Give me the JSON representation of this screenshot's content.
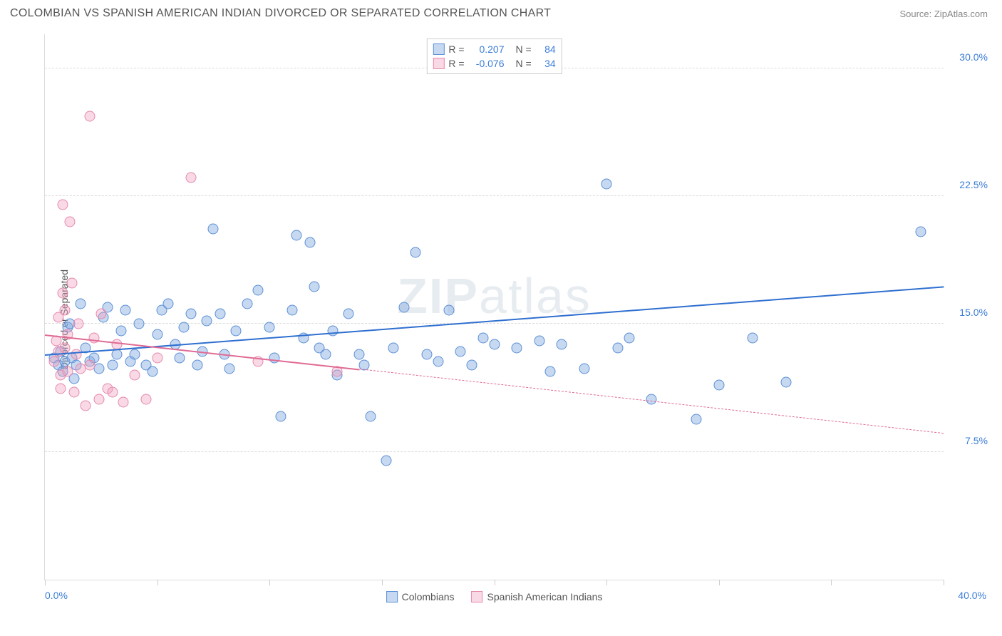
{
  "title": "COLOMBIAN VS SPANISH AMERICAN INDIAN DIVORCED OR SEPARATED CORRELATION CHART",
  "source_label": "Source: ",
  "source_name": "ZipAtlas.com",
  "ylabel": "Divorced or Separated",
  "watermark_bold": "ZIP",
  "watermark_light": "atlas",
  "chart": {
    "type": "scatter",
    "background_color": "#ffffff",
    "grid_color": "#dcdcdc",
    "text_color": "#555555",
    "axis_value_color": "#3b7dd8",
    "xlim": [
      0,
      40
    ],
    "ylim": [
      0,
      32
    ],
    "x_min_label": "0.0%",
    "x_max_label": "40.0%",
    "y_ticks": [
      7.5,
      15.0,
      22.5,
      30.0
    ],
    "y_tick_labels": [
      "7.5%",
      "15.0%",
      "22.5%",
      "30.0%"
    ],
    "x_tick_positions": [
      0,
      5,
      10,
      15,
      20,
      25,
      30,
      35,
      40
    ],
    "marker_radius": 7.5,
    "marker_border_width": 1
  },
  "series": [
    {
      "name": "Colombians",
      "fill": "rgba(130,170,225,0.45)",
      "stroke": "#5b8fd6",
      "trend_color": "#2f6fd0",
      "trend_width": 2,
      "trend": {
        "x1": 0,
        "y1": 13.2,
        "x2": 40,
        "y2": 17.2,
        "solid_to_x": 40
      },
      "R": "0.207",
      "N": "84",
      "points": [
        [
          0.4,
          13.0
        ],
        [
          0.6,
          12.6
        ],
        [
          0.7,
          13.4
        ],
        [
          0.8,
          12.2
        ],
        [
          0.9,
          12.8
        ],
        [
          1.0,
          14.8
        ],
        [
          1.1,
          15.0
        ],
        [
          1.2,
          13.0
        ],
        [
          1.3,
          11.8
        ],
        [
          1.4,
          12.6
        ],
        [
          1.6,
          16.2
        ],
        [
          1.8,
          13.6
        ],
        [
          2.0,
          12.8
        ],
        [
          2.2,
          13.0
        ],
        [
          2.4,
          12.4
        ],
        [
          2.6,
          15.4
        ],
        [
          2.8,
          16.0
        ],
        [
          3.0,
          12.6
        ],
        [
          3.2,
          13.2
        ],
        [
          3.4,
          14.6
        ],
        [
          3.6,
          15.8
        ],
        [
          3.8,
          12.8
        ],
        [
          4.0,
          13.2
        ],
        [
          4.2,
          15.0
        ],
        [
          4.5,
          12.6
        ],
        [
          4.8,
          12.2
        ],
        [
          5.0,
          14.4
        ],
        [
          5.2,
          15.8
        ],
        [
          5.5,
          16.2
        ],
        [
          5.8,
          13.8
        ],
        [
          6.0,
          13.0
        ],
        [
          6.2,
          14.8
        ],
        [
          6.5,
          15.6
        ],
        [
          6.8,
          12.6
        ],
        [
          7.0,
          13.4
        ],
        [
          7.2,
          15.2
        ],
        [
          7.5,
          20.6
        ],
        [
          7.8,
          15.6
        ],
        [
          8.0,
          13.2
        ],
        [
          8.2,
          12.4
        ],
        [
          8.5,
          14.6
        ],
        [
          9.0,
          16.2
        ],
        [
          9.5,
          17.0
        ],
        [
          10.0,
          14.8
        ],
        [
          10.2,
          13.0
        ],
        [
          10.5,
          9.6
        ],
        [
          11.0,
          15.8
        ],
        [
          11.2,
          20.2
        ],
        [
          11.5,
          14.2
        ],
        [
          11.8,
          19.8
        ],
        [
          12.0,
          17.2
        ],
        [
          12.2,
          13.6
        ],
        [
          12.5,
          13.2
        ],
        [
          12.8,
          14.6
        ],
        [
          13.0,
          12.0
        ],
        [
          13.5,
          15.6
        ],
        [
          14.0,
          13.2
        ],
        [
          14.2,
          12.6
        ],
        [
          14.5,
          9.6
        ],
        [
          15.2,
          7.0
        ],
        [
          15.5,
          13.6
        ],
        [
          16.0,
          16.0
        ],
        [
          16.5,
          19.2
        ],
        [
          17.0,
          13.2
        ],
        [
          17.5,
          12.8
        ],
        [
          18.0,
          15.8
        ],
        [
          18.5,
          13.4
        ],
        [
          19.0,
          12.6
        ],
        [
          19.5,
          14.2
        ],
        [
          20.0,
          13.8
        ],
        [
          21.0,
          13.6
        ],
        [
          22.0,
          14.0
        ],
        [
          22.5,
          12.2
        ],
        [
          23.0,
          13.8
        ],
        [
          24.0,
          12.4
        ],
        [
          25.0,
          23.2
        ],
        [
          25.5,
          13.6
        ],
        [
          26.0,
          14.2
        ],
        [
          27.0,
          10.6
        ],
        [
          29.0,
          9.4
        ],
        [
          30.0,
          11.4
        ],
        [
          31.5,
          14.2
        ],
        [
          33.0,
          11.6
        ],
        [
          39.0,
          20.4
        ]
      ]
    },
    {
      "name": "Spanish American Indians",
      "fill": "rgba(240,160,190,0.40)",
      "stroke": "#e589ad",
      "trend_color": "#e06a94",
      "trend_width": 2,
      "trend": {
        "x1": 0,
        "y1": 14.4,
        "x2": 40,
        "y2": 8.6,
        "solid_to_x": 14
      },
      "R": "-0.076",
      "N": "34",
      "points": [
        [
          0.4,
          12.8
        ],
        [
          0.5,
          14.0
        ],
        [
          0.6,
          13.4
        ],
        [
          0.6,
          15.4
        ],
        [
          0.7,
          11.2
        ],
        [
          0.7,
          12.0
        ],
        [
          0.8,
          22.0
        ],
        [
          0.8,
          16.8
        ],
        [
          0.9,
          13.6
        ],
        [
          0.9,
          15.8
        ],
        [
          1.0,
          14.4
        ],
        [
          1.0,
          12.2
        ],
        [
          1.1,
          21.0
        ],
        [
          1.2,
          17.4
        ],
        [
          1.3,
          11.0
        ],
        [
          1.4,
          13.2
        ],
        [
          1.5,
          15.0
        ],
        [
          1.6,
          12.4
        ],
        [
          1.8,
          10.2
        ],
        [
          2.0,
          27.2
        ],
        [
          2.0,
          12.6
        ],
        [
          2.2,
          14.2
        ],
        [
          2.4,
          10.6
        ],
        [
          2.5,
          15.6
        ],
        [
          2.8,
          11.2
        ],
        [
          3.0,
          11.0
        ],
        [
          3.2,
          13.8
        ],
        [
          3.5,
          10.4
        ],
        [
          4.0,
          12.0
        ],
        [
          4.5,
          10.6
        ],
        [
          5.0,
          13.0
        ],
        [
          6.5,
          23.6
        ],
        [
          9.5,
          12.8
        ],
        [
          13.0,
          12.2
        ]
      ]
    }
  ],
  "stats_legend": {
    "R_label": "R =",
    "N_label": "N ="
  },
  "bottom_legend": {
    "items": [
      "Colombians",
      "Spanish American Indians"
    ]
  }
}
